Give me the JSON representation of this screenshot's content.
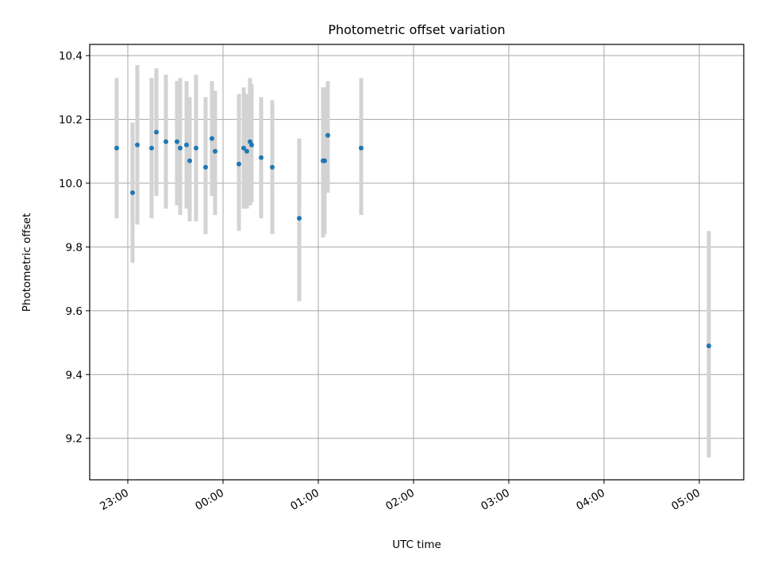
{
  "chart_data": {
    "type": "scatter",
    "title": "Photometric offset variation",
    "xlabel": "UTC time",
    "ylabel": "Photometric offset",
    "x_ticks": [
      "23:00",
      "00:00",
      "01:00",
      "02:00",
      "03:00",
      "04:00",
      "05:00"
    ],
    "y_ticks": [
      "9.2",
      "9.4",
      "9.6",
      "9.8",
      "10.0",
      "10.2",
      "10.4"
    ],
    "x_range": [
      "22:36",
      "05:28"
    ],
    "ylim": [
      9.07,
      10.435
    ],
    "grid": true,
    "colors": {
      "marker": "#1f77b4",
      "errorbar": "#d3d3d3",
      "grid": "#b0b0b0"
    },
    "points": [
      {
        "x": "22:53",
        "y": 10.11,
        "err_low": 9.89,
        "err_high": 10.33
      },
      {
        "x": "23:03",
        "y": 9.97,
        "err_low": 9.75,
        "err_high": 10.19
      },
      {
        "x": "23:06",
        "y": 10.12,
        "err_low": 9.87,
        "err_high": 10.37
      },
      {
        "x": "23:15",
        "y": 10.11,
        "err_low": 9.89,
        "err_high": 10.33
      },
      {
        "x": "23:18",
        "y": 10.16,
        "err_low": 9.96,
        "err_high": 10.36
      },
      {
        "x": "23:24",
        "y": 10.13,
        "err_low": 9.92,
        "err_high": 10.34
      },
      {
        "x": "23:31",
        "y": 10.13,
        "err_low": 9.93,
        "err_high": 10.32
      },
      {
        "x": "23:33",
        "y": 10.11,
        "err_low": 9.9,
        "err_high": 10.33
      },
      {
        "x": "23:37",
        "y": 10.12,
        "err_low": 9.92,
        "err_high": 10.32
      },
      {
        "x": "23:39",
        "y": 10.07,
        "err_low": 9.88,
        "err_high": 10.27
      },
      {
        "x": "23:43",
        "y": 10.11,
        "err_low": 9.88,
        "err_high": 10.34
      },
      {
        "x": "23:49",
        "y": 10.05,
        "err_low": 9.84,
        "err_high": 10.27
      },
      {
        "x": "23:53",
        "y": 10.14,
        "err_low": 9.96,
        "err_high": 10.32
      },
      {
        "x": "23:55",
        "y": 10.1,
        "err_low": 9.9,
        "err_high": 10.29
      },
      {
        "x": "00:10",
        "y": 10.06,
        "err_low": 9.85,
        "err_high": 10.28
      },
      {
        "x": "00:13",
        "y": 10.11,
        "err_low": 9.92,
        "err_high": 10.3
      },
      {
        "x": "00:15",
        "y": 10.1,
        "err_low": 9.92,
        "err_high": 10.28
      },
      {
        "x": "00:17",
        "y": 10.13,
        "err_low": 9.93,
        "err_high": 10.33
      },
      {
        "x": "00:18",
        "y": 10.12,
        "err_low": 9.94,
        "err_high": 10.31
      },
      {
        "x": "00:24",
        "y": 10.08,
        "err_low": 9.89,
        "err_high": 10.27
      },
      {
        "x": "00:31",
        "y": 10.05,
        "err_low": 9.84,
        "err_high": 10.26
      },
      {
        "x": "00:48",
        "y": 9.89,
        "err_low": 9.63,
        "err_high": 10.14
      },
      {
        "x": "01:03",
        "y": 10.07,
        "err_low": 9.83,
        "err_high": 10.3
      },
      {
        "x": "01:04",
        "y": 10.07,
        "err_low": 9.84,
        "err_high": 10.3
      },
      {
        "x": "01:06",
        "y": 10.15,
        "err_low": 9.97,
        "err_high": 10.32
      },
      {
        "x": "01:27",
        "y": 10.11,
        "err_low": 9.9,
        "err_high": 10.33
      },
      {
        "x": "05:06",
        "y": 9.49,
        "err_low": 9.14,
        "err_high": 9.85
      }
    ]
  }
}
